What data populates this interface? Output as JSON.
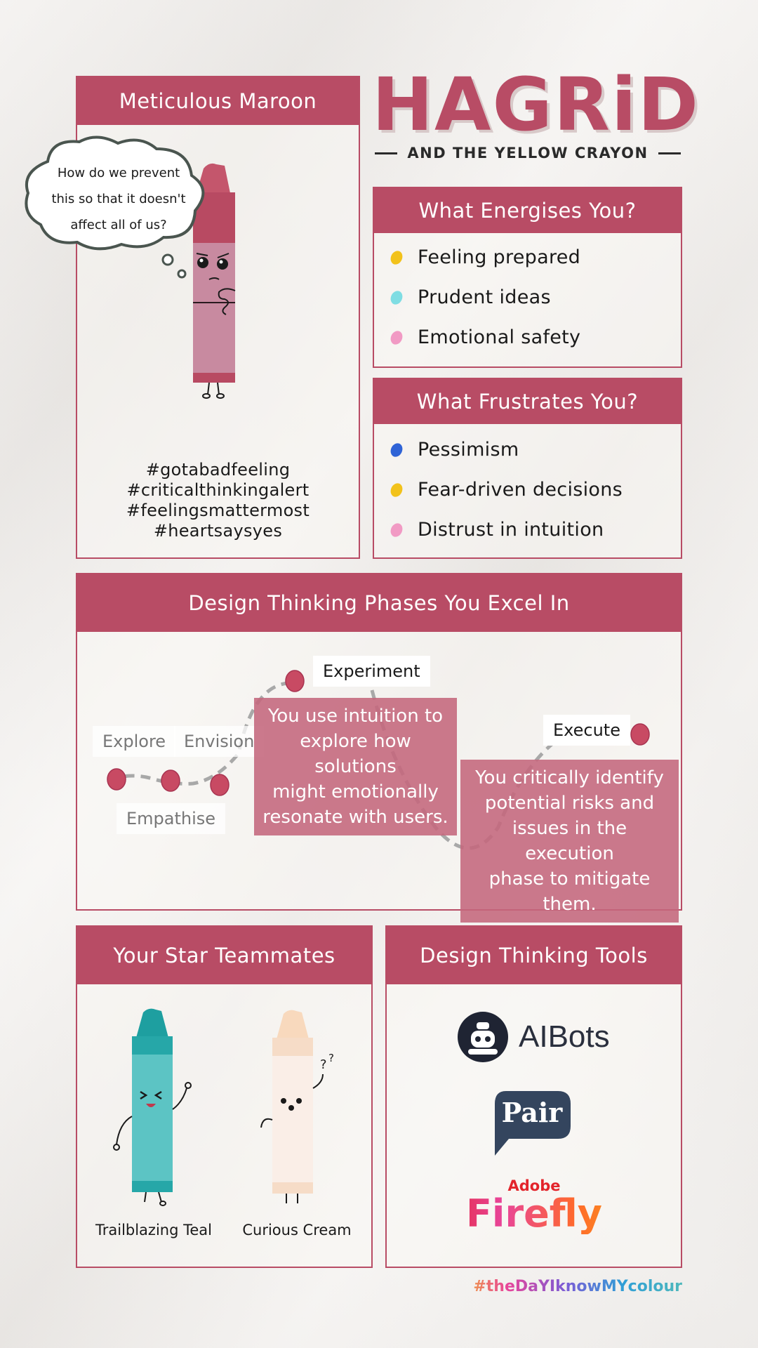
{
  "title": {
    "main": "HAGRiD",
    "subtitle": "AND THE YELLOW CRAYON"
  },
  "profile": {
    "heading": "Meticulous Maroon",
    "thought": [
      "How do we prevent",
      "this so that it doesn't",
      "affect all of us?"
    ],
    "hashtags": [
      "#gotabadfeeling",
      "#criticalthinkingalert",
      "#feelingsmattermost",
      "#heartsaysyes"
    ]
  },
  "energises": {
    "heading": "What Energises You?",
    "items": [
      {
        "label": "Feeling prepared",
        "color": "#f2c21b"
      },
      {
        "label": "Prudent ideas",
        "color": "#7fdde3"
      },
      {
        "label": "Emotional safety",
        "color": "#f19ac4"
      }
    ]
  },
  "frustrates": {
    "heading": "What Frustrates You?",
    "items": [
      {
        "label": "Pessimism",
        "color": "#2f63d6"
      },
      {
        "label": "Fear-driven decisions",
        "color": "#f2c21b"
      },
      {
        "label": "Distrust in intuition",
        "color": "#f19ac4"
      }
    ]
  },
  "phases": {
    "heading": "Design Thinking Phases You Excel In",
    "labels": {
      "explore": "Explore",
      "envision": "Envision",
      "empathise": "Empathise",
      "experiment": "Experiment",
      "execute": "Execute"
    },
    "notes": {
      "experiment": [
        "You use intuition to",
        "explore how solutions",
        "might emotionally",
        "resonate with users."
      ],
      "execute": [
        "You critically identify",
        "potential risks and",
        "issues in the execution",
        "phase to mitigate them."
      ]
    }
  },
  "teammates": {
    "heading": "Your Star Teammates",
    "members": [
      {
        "name": "Trailblazing Teal",
        "color": "#4fb8bc"
      },
      {
        "name": "Curious Cream",
        "color": "#fbe3cf"
      }
    ]
  },
  "tools": {
    "heading": "Design Thinking Tools",
    "items": [
      {
        "name": "AIBots",
        "icon": "robot-icon"
      },
      {
        "name": "Pair",
        "icon": "speech-bubble-icon"
      },
      {
        "brand": "Adobe",
        "name": "Firefly"
      }
    ]
  },
  "footer_tag": "#theDaYIknowMYcolour",
  "colors": {
    "accent": "#b84c65",
    "background": "#f2efec"
  }
}
